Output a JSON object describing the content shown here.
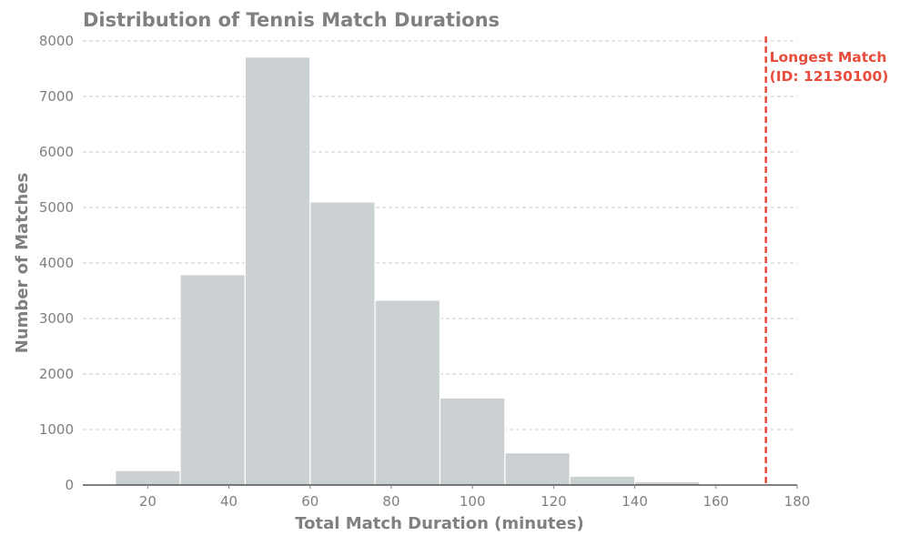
{
  "chart_data": {
    "type": "bar",
    "title": "Distribution of Tennis Match Durations",
    "xlabel": "Total Match Duration (minutes)",
    "ylabel": "Number of Matches",
    "xlim": [
      4,
      180
    ],
    "ylim": [
      0,
      8000
    ],
    "xticks": [
      20,
      40,
      60,
      80,
      100,
      120,
      140,
      160,
      180
    ],
    "yticks": [
      0,
      1000,
      2000,
      3000,
      4000,
      5000,
      6000,
      7000,
      8000
    ],
    "grid": "horizontal dashed",
    "bins": [
      {
        "start": 12,
        "end": 28,
        "count": 260
      },
      {
        "start": 28,
        "end": 44,
        "count": 3790
      },
      {
        "start": 44,
        "end": 60,
        "count": 7710
      },
      {
        "start": 60,
        "end": 76,
        "count": 5100
      },
      {
        "start": 76,
        "end": 92,
        "count": 3330
      },
      {
        "start": 92,
        "end": 108,
        "count": 1570
      },
      {
        "start": 108,
        "end": 124,
        "count": 580
      },
      {
        "start": 124,
        "end": 140,
        "count": 160
      },
      {
        "start": 140,
        "end": 156,
        "count": 60
      },
      {
        "start": 156,
        "end": 172,
        "count": 10
      }
    ],
    "annotation": {
      "x": 172.3,
      "line1": "Longest Match",
      "line2": "(ID: 12130100)"
    },
    "colors": {
      "bar": "#cbd1d3",
      "bar_edge": "#ffffff",
      "marker": "#e74c3c",
      "text": "#808080",
      "grid": "#cccccc"
    }
  }
}
